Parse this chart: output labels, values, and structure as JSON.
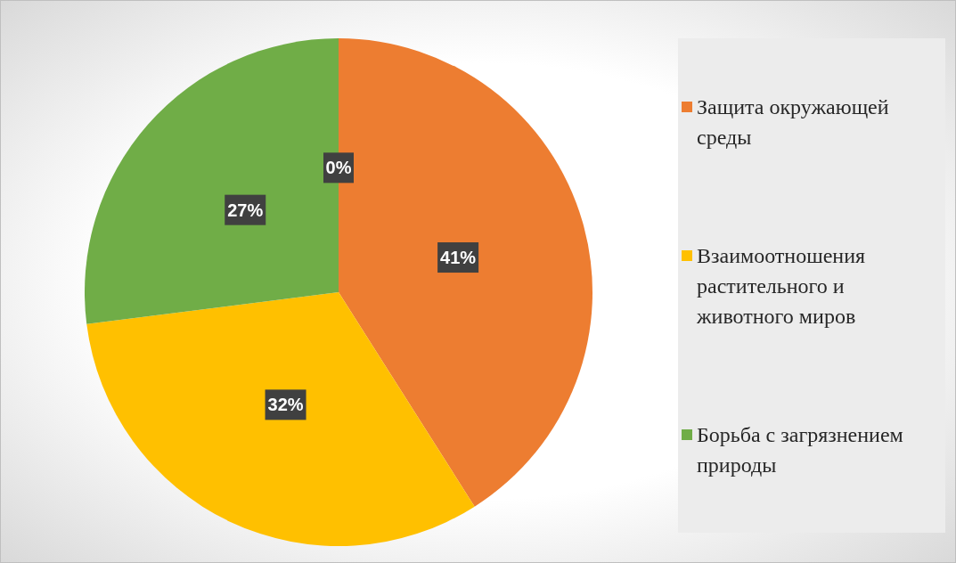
{
  "chart_data": {
    "type": "pie",
    "categories": [
      null,
      "Защита окружающей среды",
      "Взаимоотношения растительного и животного миров",
      "Борьба с загрязнением природы"
    ],
    "values": [
      0,
      41,
      32,
      27
    ],
    "colors": [
      "#4472c4",
      "#ed7d31",
      "#ffc000",
      "#70ad47"
    ],
    "value_labels": [
      "0%",
      "41%",
      "32%",
      "27%"
    ],
    "legend": "right"
  }
}
